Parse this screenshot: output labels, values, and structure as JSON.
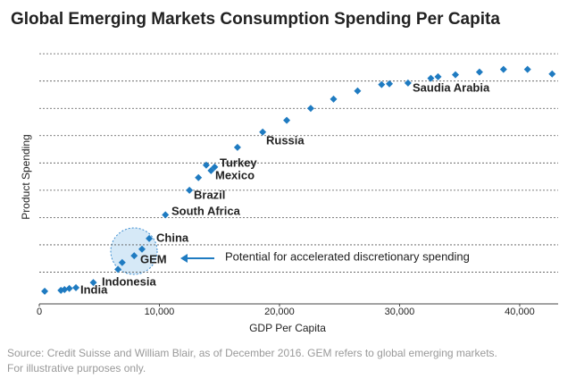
{
  "chart_data": {
    "type": "scatter",
    "title": "Global Emerging Markets Consumption Spending Per Capita",
    "x_label": "GDP Per Capita",
    "y_label": "Product Spending",
    "color": "#1f7bc1",
    "x": [
      450,
      1800,
      2100,
      2500,
      3050,
      4500,
      6550,
      6900,
      7900,
      8550,
      9150,
      10500,
      12500,
      13250,
      13900,
      14300,
      14600,
      16500,
      18600,
      20600,
      22600,
      24500,
      26500,
      28500,
      29150,
      30700,
      32600,
      33200,
      34650,
      36650,
      38650,
      40650,
      42700
    ],
    "values": [
      0.3,
      0.33,
      0.36,
      0.4,
      0.43,
      0.62,
      1.1,
      1.35,
      1.6,
      1.84,
      2.23,
      3.1,
      4.0,
      4.46,
      4.92,
      4.72,
      4.85,
      5.57,
      6.13,
      6.56,
      7.0,
      7.34,
      7.64,
      7.87,
      7.9,
      7.93,
      8.1,
      8.16,
      8.23,
      8.33,
      8.43,
      8.43,
      8.26
    ],
    "xlim": [
      0,
      43200
    ],
    "ylim": [
      0,
      9.3
    ],
    "xticks": [
      0,
      {
        "value": 10000,
        "label": "10,000"
      },
      {
        "value": 20000,
        "label": "20,000"
      },
      {
        "value": 30000,
        "label": "30,000"
      },
      {
        "value": 40000,
        "label": "40,000"
      }
    ],
    "ygrid": [
      1,
      2,
      3,
      4,
      5,
      6,
      7,
      8,
      9
    ],
    "grid": true,
    "annotations": [
      "India",
      "Indonesia",
      "GEM",
      "China",
      "South Africa",
      "Brazil",
      "Mexico",
      "Turkey",
      "Russia",
      "Saudia Arabia",
      "Potential for accelerated discretionary spending"
    ],
    "source": [
      "Source: Credit Suisse and William Blair, as of December 2016. GEM refers to global emerging markets.",
      "For illustrative purposes only."
    ]
  }
}
